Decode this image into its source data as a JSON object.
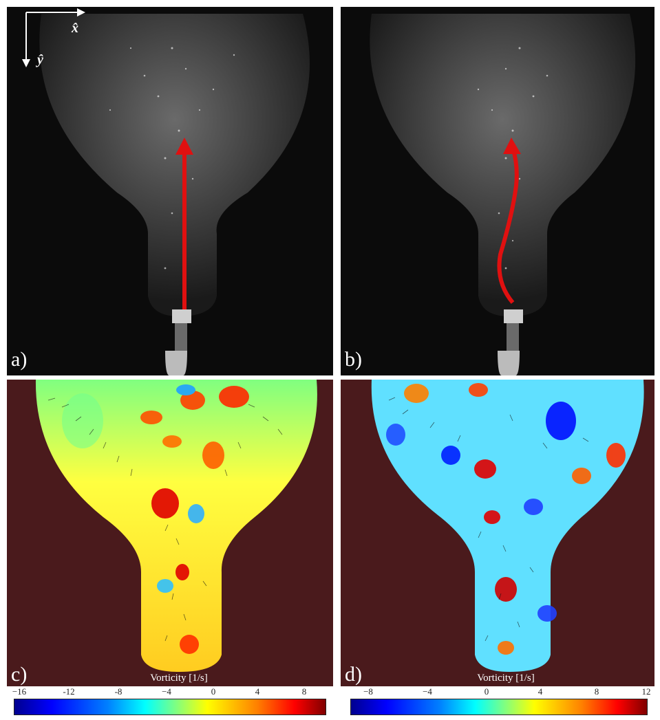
{
  "panels": {
    "a": {
      "label": "a)"
    },
    "b": {
      "label": "b)"
    },
    "c": {
      "label": "c)",
      "colorbar": {
        "title": "Vorticity [1/s]",
        "ticks": [
          "−16",
          "-12",
          "-8",
          "−4",
          "0",
          "4",
          "8"
        ]
      }
    },
    "d": {
      "label": "d)",
      "colorbar": {
        "title": "Vorticity [1/s]",
        "ticks": [
          "−8",
          "−4",
          "0",
          "4",
          "8",
          "12"
        ]
      }
    }
  },
  "axes": {
    "x": "x̂",
    "y": "ŷ"
  },
  "colors": {
    "photo_bg": "#0b0b0b",
    "field_bg": "#4a1a1c",
    "arrow_red": "#e01010"
  }
}
